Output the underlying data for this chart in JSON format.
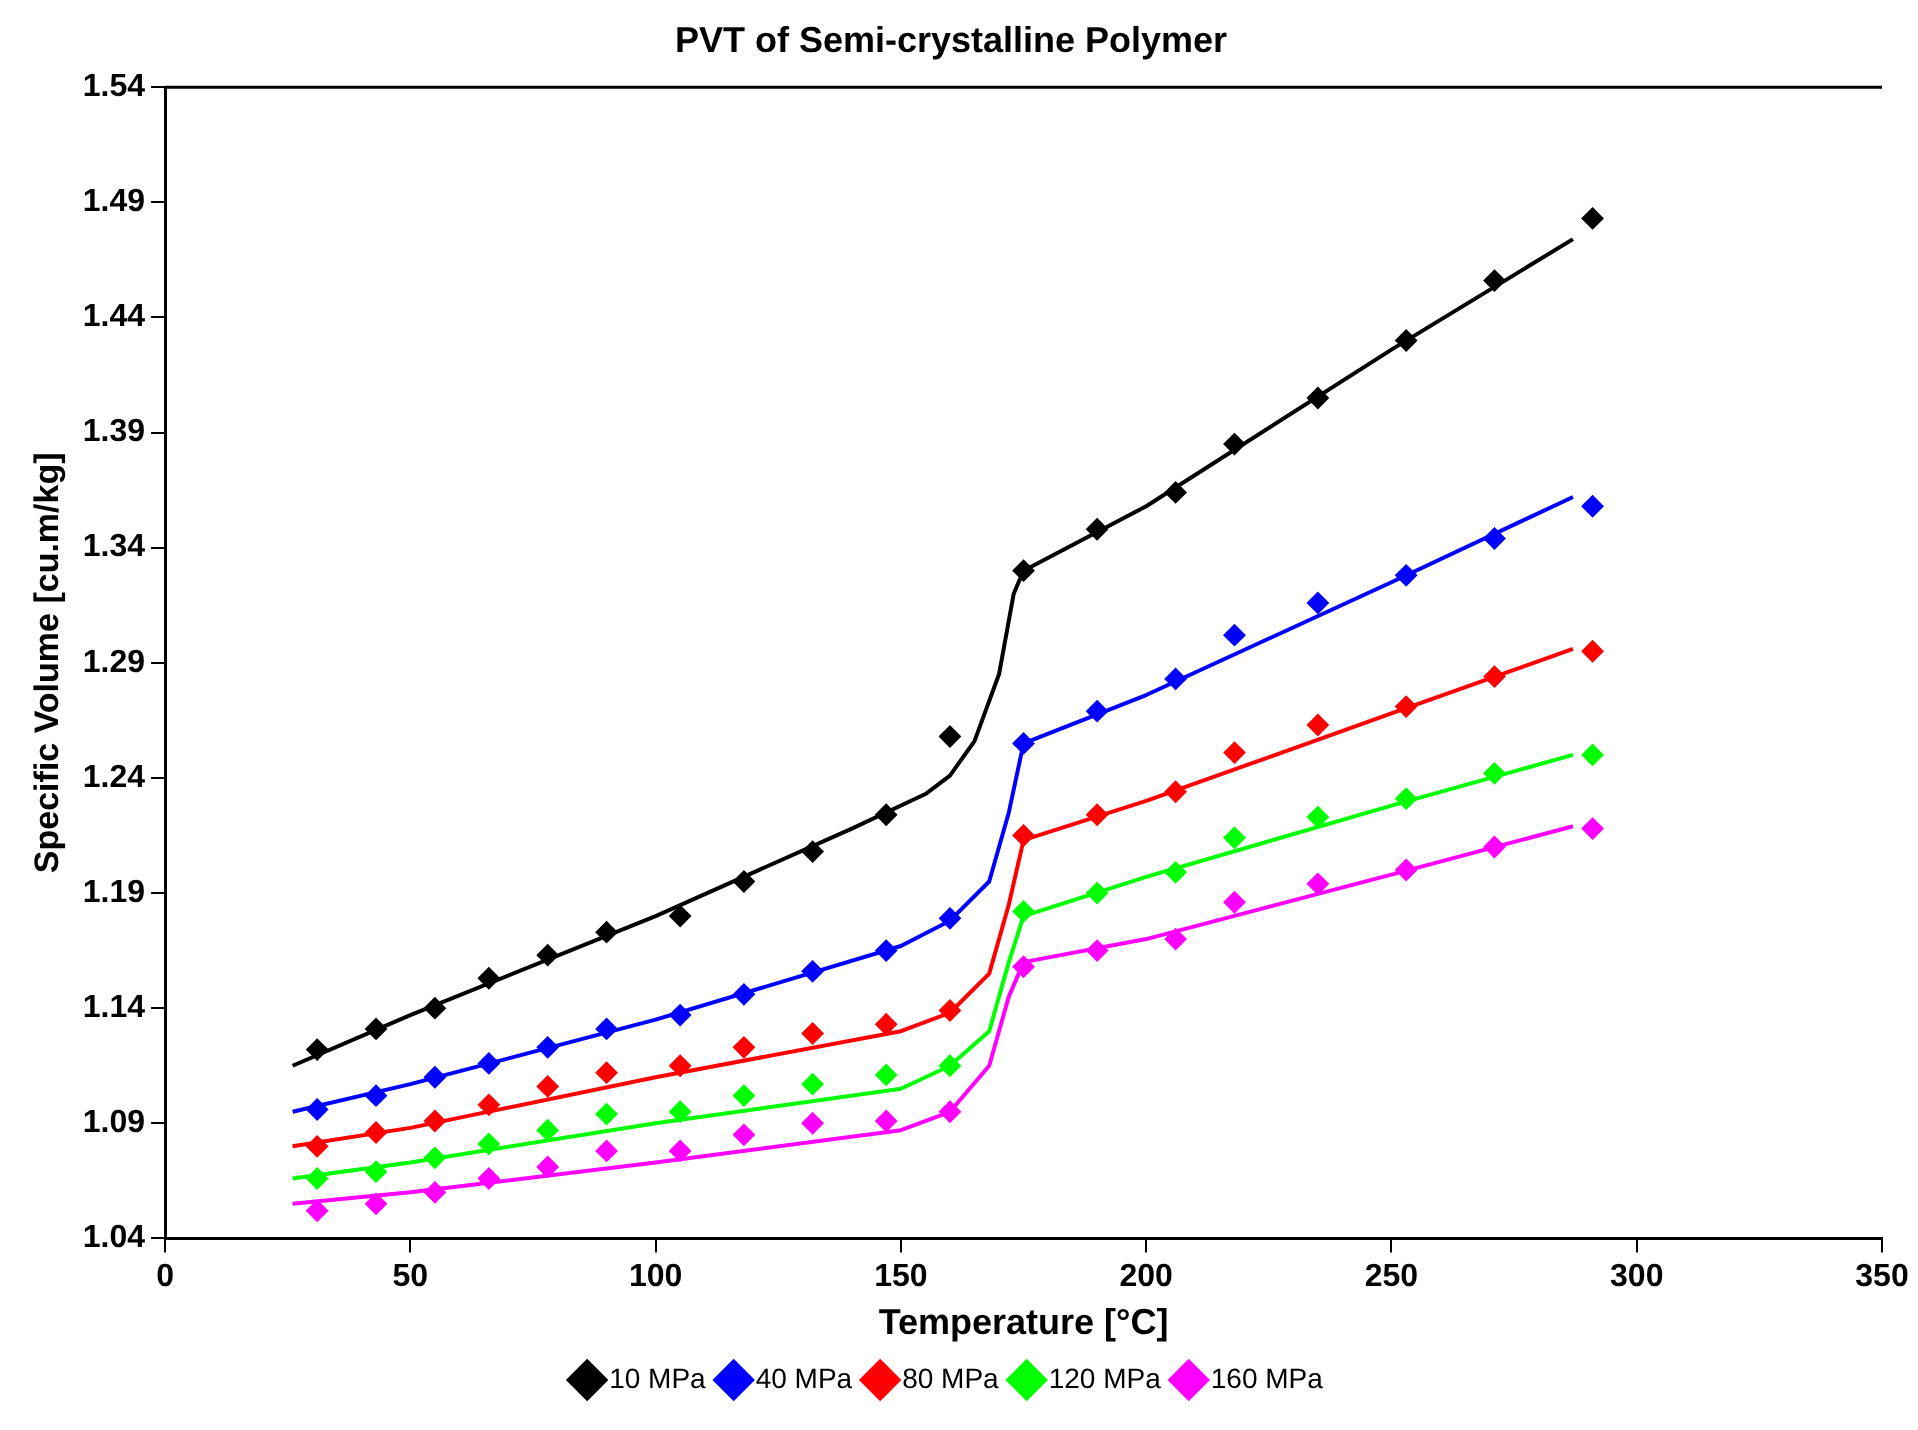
{
  "chart_data": {
    "type": "scatter",
    "title": "PVT of Semi-crystalline Polymer",
    "xlabel": "Temperature [°C]",
    "ylabel": "Specific Volume [cu.m/kg]",
    "xlim": [
      0,
      350
    ],
    "xticks": [
      0,
      50,
      100,
      150,
      200,
      250,
      300,
      350
    ],
    "ylim": [
      1.04,
      1.54
    ],
    "yticks": [
      1.04,
      1.09,
      1.14,
      1.19,
      1.24,
      1.29,
      1.34,
      1.39,
      1.44,
      1.49,
      1.54
    ],
    "grid": false,
    "legend": "bottom",
    "marker": "diamond",
    "x": [
      31,
      43,
      55,
      66,
      78,
      90,
      105,
      118,
      132,
      147,
      160,
      175,
      190,
      206,
      218,
      235,
      253,
      271,
      291
    ],
    "series": [
      {
        "name": "10 MPa",
        "color": "#000000",
        "values": [
          1.122,
          1.131,
          1.14,
          1.153,
          1.163,
          1.173,
          1.18,
          1.195,
          1.208,
          1.224,
          1.258,
          1.33,
          1.348,
          1.364,
          1.385,
          1.405,
          1.43,
          1.456,
          1.483
        ]
      },
      {
        "name": "40 MPa",
        "color": "#0000ff",
        "values": [
          1.096,
          1.102,
          1.11,
          1.116,
          1.123,
          1.131,
          1.137,
          1.146,
          1.156,
          1.165,
          1.179,
          1.255,
          1.269,
          1.283,
          1.302,
          1.316,
          1.328,
          1.344,
          1.358
        ]
      },
      {
        "name": "80 MPa",
        "color": "#ff0000",
        "values": [
          1.08,
          1.086,
          1.091,
          1.098,
          1.106,
          1.112,
          1.115,
          1.123,
          1.129,
          1.133,
          1.139,
          1.215,
          1.224,
          1.234,
          1.251,
          1.263,
          1.271,
          1.284,
          1.295
        ]
      },
      {
        "name": "120 MPa",
        "color": "#00ff00",
        "values": [
          1.066,
          1.069,
          1.075,
          1.081,
          1.087,
          1.094,
          1.095,
          1.102,
          1.107,
          1.111,
          1.115,
          1.182,
          1.19,
          1.199,
          1.214,
          1.223,
          1.231,
          1.242,
          1.25
        ]
      },
      {
        "name": "160 MPa",
        "color": "#ff00ff",
        "values": [
          1.052,
          1.055,
          1.06,
          1.066,
          1.071,
          1.078,
          1.078,
          1.085,
          1.09,
          1.091,
          1.095,
          1.158,
          1.165,
          1.17,
          1.186,
          1.194,
          1.2,
          1.21,
          1.218
        ]
      },
      {
        "type": "line",
        "marker": "none",
        "color": "#000000",
        "x": [
          26,
          50,
          100,
          140,
          155,
          160,
          165,
          170,
          173,
          175,
          200,
          250,
          287
        ],
        "values": [
          1.115,
          1.137,
          1.18,
          1.218,
          1.233,
          1.241,
          1.256,
          1.285,
          1.32,
          1.33,
          1.358,
          1.426,
          1.474
        ]
      },
      {
        "type": "line",
        "marker": "none",
        "color": "#0000ff",
        "x": [
          26,
          50,
          100,
          150,
          160,
          168,
          172,
          175,
          200,
          250,
          287
        ],
        "values": [
          1.095,
          1.107,
          1.135,
          1.167,
          1.178,
          1.195,
          1.225,
          1.255,
          1.276,
          1.325,
          1.362
        ]
      },
      {
        "type": "line",
        "marker": "none",
        "color": "#ff0000",
        "x": [
          26,
          50,
          100,
          150,
          160,
          168,
          172,
          175,
          200,
          250,
          287
        ],
        "values": [
          1.08,
          1.088,
          1.11,
          1.13,
          1.138,
          1.155,
          1.185,
          1.213,
          1.23,
          1.268,
          1.296
        ]
      },
      {
        "type": "line",
        "marker": "none",
        "color": "#00ff00",
        "x": [
          26,
          50,
          100,
          150,
          160,
          168,
          172,
          175,
          200,
          250,
          287
        ],
        "values": [
          1.066,
          1.073,
          1.09,
          1.105,
          1.115,
          1.13,
          1.16,
          1.18,
          1.197,
          1.228,
          1.25
        ]
      },
      {
        "type": "line",
        "marker": "none",
        "color": "#ff00ff",
        "x": [
          26,
          50,
          100,
          150,
          160,
          168,
          172,
          175,
          200,
          250,
          287
        ],
        "values": [
          1.055,
          1.06,
          1.073,
          1.087,
          1.095,
          1.115,
          1.145,
          1.16,
          1.17,
          1.198,
          1.219
        ]
      }
    ]
  }
}
